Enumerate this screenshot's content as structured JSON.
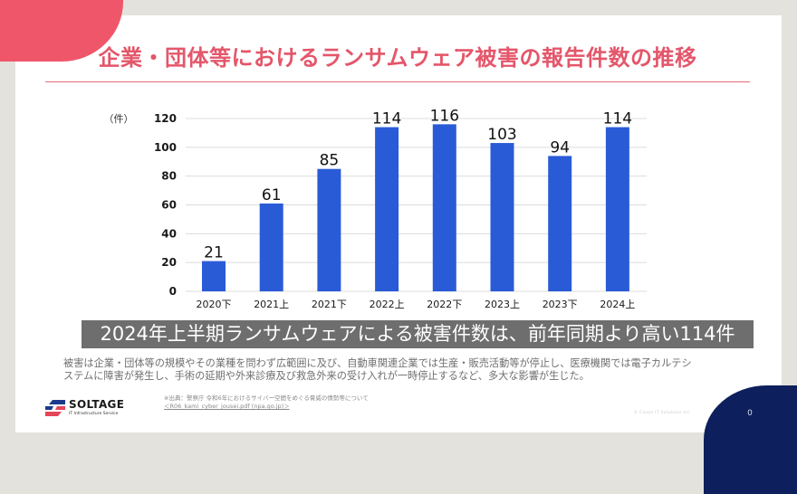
{
  "header": {
    "title": "企業・団体等におけるランサムウェア被害の報告件数の推移"
  },
  "chart_data": {
    "type": "bar",
    "title": "企業・団体等におけるランサムウェア被害の報告件数の推移",
    "xlabel": "",
    "ylabel": "（件）",
    "categories": [
      "2020下",
      "2021上",
      "2021下",
      "2022上",
      "2022下",
      "2023上",
      "2023下",
      "2024上"
    ],
    "values": [
      21,
      61,
      85,
      114,
      116,
      103,
      94,
      114
    ],
    "ylim": [
      0,
      120
    ],
    "yticks": [
      0,
      20,
      40,
      60,
      80,
      100,
      120
    ],
    "grid": true,
    "data_labels": true,
    "bar_color": "#2a5bd7"
  },
  "banner": {
    "text": "2024年上半期ランサムウェアによる被害件数は、前年同期より高い114件"
  },
  "description": {
    "line1": "被害は企業・団体等の規模やその業種を問わず広範囲に及び、自動車関連企業では生産・販売活動等が停止し、医療機関では電子カルテシ",
    "line2": "ステムに障害が発生し、手術の延期や外来診療及び救急外来の受け入れが一時停止するなど、多大な影響が生じた。"
  },
  "footer": {
    "logo_name": "SOLTAGE",
    "logo_tagline": "IT Infrastructure Service",
    "source_line": "※出典：警察庁 令和6年におけるサイバー空間をめぐる脅威の情勢等について",
    "source_link": "＜R06_kami_cyber_jousei.pdf (npa.go.jp)＞",
    "copyright": "© Canon IT Solutions Inc.",
    "page_number": "0"
  },
  "colors": {
    "accent": "#e4566a",
    "bar": "#2a5bd7",
    "banner": "#6e6e6e",
    "navy": "#0d1f5c"
  }
}
